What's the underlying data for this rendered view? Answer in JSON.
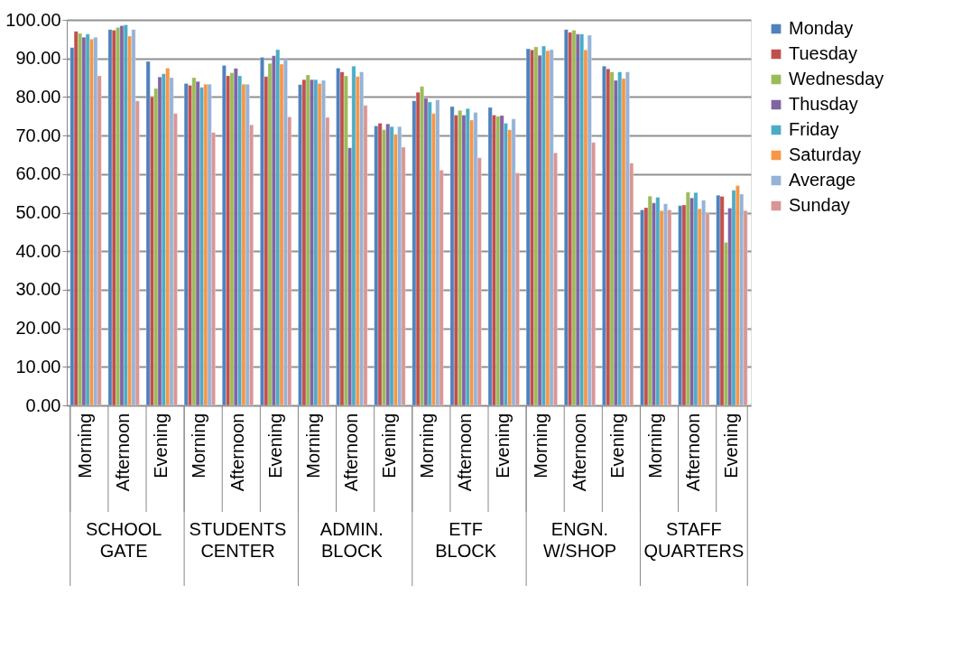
{
  "chart_data": {
    "type": "bar",
    "categories": [
      "Morning",
      "Afternoon",
      "Evening",
      "Morning",
      "Afternoon",
      "Evening",
      "Morning",
      "Afternoon",
      "Evening",
      "Morning",
      "Afternoon",
      "Evening",
      "Morning",
      "Afternoon",
      "Evening",
      "Morning",
      "Afternoon",
      "Evening"
    ],
    "annotations": [
      "SCHOOL GATE",
      "STUDENTS CENTER",
      "ADMIN. BLOCK",
      "ETF BLOCK",
      "ENGN. W/SHOP",
      "STAFF QUARTERS"
    ],
    "series": [
      {
        "name": "Monday",
        "color": "#4f81bd",
        "values": [
          92.8,
          97.5,
          89.2,
          83.5,
          88.2,
          90.3,
          83.2,
          87.5,
          72.5,
          79,
          77.5,
          77.3,
          92.5,
          97.5,
          88,
          50.7,
          51.8,
          54.5
        ]
      },
      {
        "name": "Tuesday",
        "color": "#c0504d",
        "values": [
          97,
          97.3,
          80,
          83,
          85.5,
          85.3,
          84.5,
          86.5,
          73.2,
          81.2,
          75.3,
          75.3,
          92.2,
          96.8,
          87.3,
          51.3,
          52,
          54.2
        ]
      },
      {
        "name": "Wednesday",
        "color": "#9bbb59",
        "values": [
          96.5,
          98,
          82.2,
          85,
          86.3,
          88.7,
          85.7,
          85.5,
          71.5,
          82.7,
          76.5,
          75,
          93,
          97.3,
          86.5,
          54.3,
          55.3,
          42.3
        ]
      },
      {
        "name": "Thusday",
        "color": "#8064a2",
        "values": [
          95.5,
          98.5,
          85.2,
          84,
          87.4,
          90.7,
          84.5,
          66.8,
          73,
          79.7,
          75.3,
          75.2,
          90.8,
          96.3,
          84.3,
          52.5,
          53.8,
          51.2
        ]
      },
      {
        "name": "Friday",
        "color": "#4bacc6",
        "values": [
          96.3,
          98.7,
          86,
          82.5,
          85.5,
          92.3,
          84.5,
          88,
          72.3,
          78.7,
          77,
          73.2,
          93.2,
          96.3,
          86.5,
          54,
          55.2,
          55.8
        ]
      },
      {
        "name": "Saturday",
        "color": "#f79646",
        "values": [
          95,
          95.8,
          87.5,
          83.3,
          83.3,
          88.5,
          83.5,
          85.3,
          70.3,
          75.7,
          74,
          71.5,
          92,
          92.2,
          84.8,
          50.5,
          51,
          57
        ]
      },
      {
        "name": "Average",
        "color": "#95b3d7",
        "values": [
          95.5,
          97.5,
          85,
          83.3,
          83.3,
          89.7,
          84.3,
          86.5,
          72.3,
          79.3,
          76,
          74.3,
          92.3,
          96,
          86.5,
          52.3,
          53.2,
          54.8
        ]
      },
      {
        "name": "Sunday",
        "color": "#d99694",
        "values": [
          85.5,
          79,
          75.7,
          70.8,
          72.8,
          74.8,
          74.7,
          77.8,
          67,
          61,
          64.2,
          60.3,
          65.5,
          68.2,
          62.8,
          50.7,
          49.7,
          50.5
        ]
      }
    ],
    "ylim": [
      0,
      100
    ],
    "yticks": [
      {
        "value": 0,
        "label": "0.00"
      },
      {
        "value": 10,
        "label": "10.00"
      },
      {
        "value": 20,
        "label": "20.00"
      },
      {
        "value": 30,
        "label": "30.00"
      },
      {
        "value": 40,
        "label": "40.00"
      },
      {
        "value": 50,
        "label": "50.00"
      },
      {
        "value": 60,
        "label": "60.00"
      },
      {
        "value": 70,
        "label": "70.00"
      },
      {
        "value": 80,
        "label": "80.00"
      },
      {
        "value": 90,
        "label": "90.00"
      },
      {
        "value": 100,
        "label": "100.00"
      }
    ],
    "grid": "y",
    "legend": "right"
  }
}
